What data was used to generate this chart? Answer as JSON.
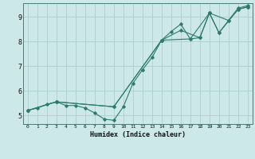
{
  "xlabel": "Humidex (Indice chaleur)",
  "bg_color": "#cce8e8",
  "line_color": "#2d7a6e",
  "grid_color": "#aacfcf",
  "xlim": [
    -0.5,
    23.5
  ],
  "ylim": [
    4.65,
    9.55
  ],
  "xticks": [
    0,
    1,
    2,
    3,
    4,
    5,
    6,
    7,
    8,
    9,
    10,
    11,
    12,
    13,
    14,
    15,
    16,
    17,
    18,
    19,
    20,
    21,
    22,
    23
  ],
  "yticks": [
    5,
    6,
    7,
    8,
    9
  ],
  "series1_x": [
    0,
    1,
    2,
    3,
    4,
    5,
    6,
    7,
    8,
    9,
    10,
    11,
    12,
    13,
    14,
    15,
    16,
    17,
    18,
    19,
    20,
    21,
    22,
    23
  ],
  "series1_y": [
    5.2,
    5.3,
    5.45,
    5.55,
    5.4,
    5.4,
    5.3,
    5.1,
    4.85,
    4.8,
    5.35,
    6.3,
    6.85,
    7.35,
    8.05,
    8.4,
    8.7,
    8.1,
    8.15,
    9.15,
    8.35,
    8.85,
    9.3,
    9.4
  ],
  "series2_x": [
    0,
    3,
    9,
    14,
    17,
    19,
    20,
    22,
    23
  ],
  "series2_y": [
    5.2,
    5.55,
    5.35,
    8.05,
    8.1,
    9.15,
    8.35,
    9.3,
    9.4
  ],
  "series3_x": [
    0,
    3,
    9,
    14,
    16,
    18,
    19,
    21,
    22,
    23
  ],
  "series3_y": [
    5.2,
    5.55,
    5.35,
    8.05,
    8.45,
    8.15,
    9.15,
    8.85,
    9.35,
    9.45
  ]
}
